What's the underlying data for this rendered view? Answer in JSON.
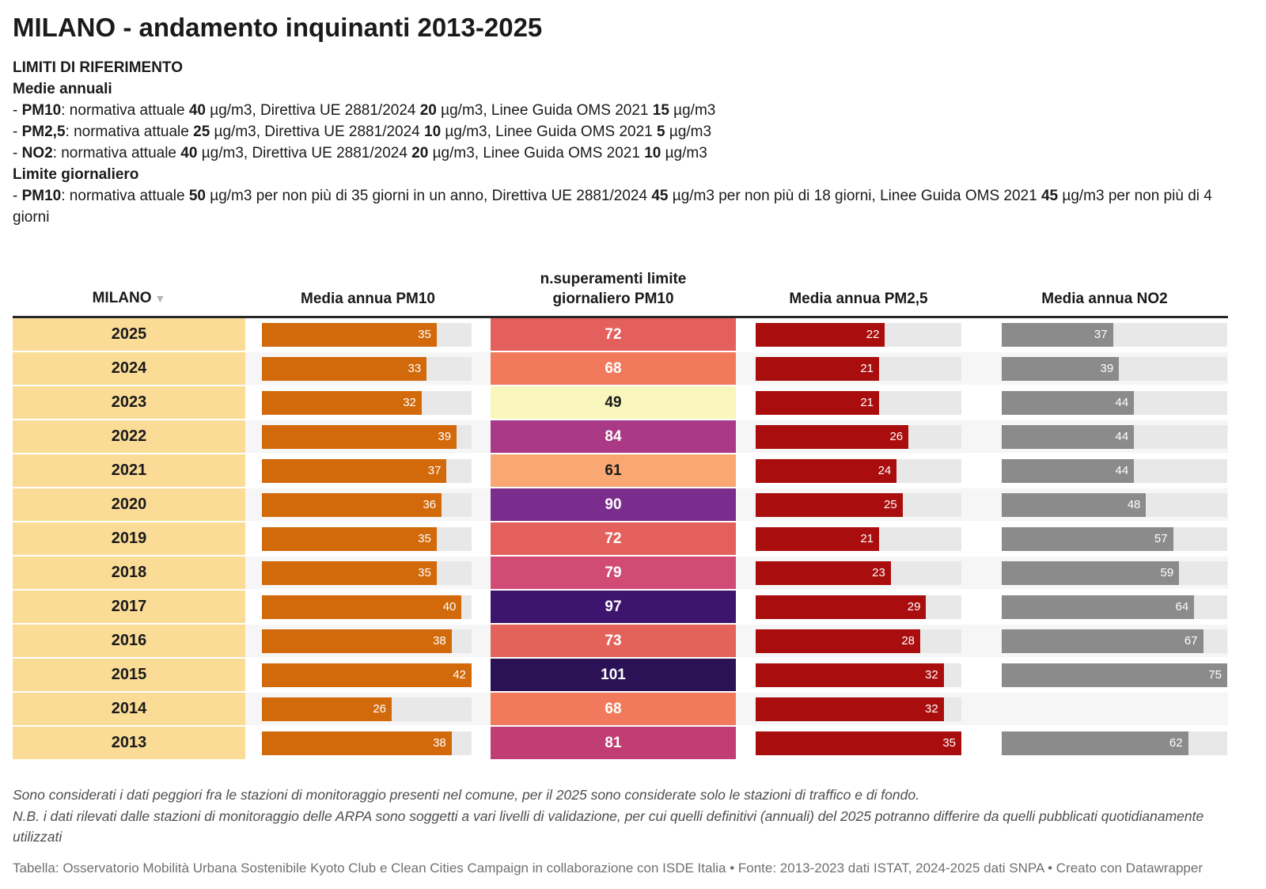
{
  "title": "MILANO - andamento inquinanti 2013-2025",
  "limits": {
    "heading": "LIMITI DI RIFERIMENTO",
    "annual_heading": "Medie annuali",
    "annual_lines": [
      [
        {
          "t": "- "
        },
        {
          "t": "PM10",
          "b": true
        },
        {
          "t": ": normativa attuale "
        },
        {
          "t": "40",
          "b": true
        },
        {
          "t": " µg/m3, Direttiva UE 2881/2024 "
        },
        {
          "t": "20",
          "b": true
        },
        {
          "t": " µg/m3, Linee Guida OMS 2021 "
        },
        {
          "t": "15",
          "b": true
        },
        {
          "t": " µg/m3"
        }
      ],
      [
        {
          "t": "- "
        },
        {
          "t": "PM2,5",
          "b": true
        },
        {
          "t": ": normativa attuale "
        },
        {
          "t": "25",
          "b": true
        },
        {
          "t": " µg/m3, Direttiva UE 2881/2024 "
        },
        {
          "t": "10",
          "b": true
        },
        {
          "t": " µg/m3, Linee Guida OMS 2021 "
        },
        {
          "t": "5",
          "b": true
        },
        {
          "t": " µg/m3"
        }
      ],
      [
        {
          "t": "- "
        },
        {
          "t": "NO2",
          "b": true
        },
        {
          "t": ": normativa attuale "
        },
        {
          "t": "40",
          "b": true
        },
        {
          "t": " µg/m3, Direttiva UE 2881/2024 "
        },
        {
          "t": "20",
          "b": true
        },
        {
          "t": " µg/m3, Linee Guida OMS 2021 "
        },
        {
          "t": "10",
          "b": true
        },
        {
          "t": " µg/m3"
        }
      ]
    ],
    "daily_heading": "Limite giornaliero",
    "daily_lines": [
      [
        {
          "t": "- "
        },
        {
          "t": "PM10",
          "b": true
        },
        {
          "t": ": normativa attuale "
        },
        {
          "t": "50",
          "b": true
        },
        {
          "t": " µg/m3 per non più di 35 giorni in un anno, Direttiva UE 2881/2024 "
        },
        {
          "t": "45",
          "b": true
        },
        {
          "t": " µg/m3 per non più di 18 giorni, Linee Guida OMS 2021 "
        },
        {
          "t": "45",
          "b": true
        },
        {
          "t": " µg/m3 per non più di 4 giorni"
        }
      ]
    ]
  },
  "table": {
    "columns": {
      "year": "MILANO",
      "sort_icon": "▼",
      "pm10": "Media annua PM10",
      "exceed": "n.superamenti limite giornaliero PM10",
      "pm25": "Media annua PM2,5",
      "no2": "Media annua NO2"
    },
    "bar_max": {
      "pm10": 42,
      "pm25": 35,
      "no2": 75
    },
    "colors": {
      "year_bg": "#FBDC97",
      "row_alt": "#F6F6F6",
      "track": "#E8E8E8",
      "pm10_bar": "#D2690B",
      "pm25_bar": "#A90D0D",
      "no2_bar": "#8B8B8B",
      "light_text": "#FFFFFF",
      "dark_text": "#1A1A1A"
    },
    "rows": [
      {
        "year": "2025",
        "pm10": 35,
        "exceed": 72,
        "exceed_bg": "#E4605C",
        "exceed_dark": false,
        "pm25": 22,
        "no2": 37
      },
      {
        "year": "2024",
        "pm10": 33,
        "exceed": 68,
        "exceed_bg": "#F07A5B",
        "exceed_dark": false,
        "pm25": 21,
        "no2": 39
      },
      {
        "year": "2023",
        "pm10": 32,
        "exceed": 49,
        "exceed_bg": "#FAF7BC",
        "exceed_dark": true,
        "pm25": 21,
        "no2": 44
      },
      {
        "year": "2022",
        "pm10": 39,
        "exceed": 84,
        "exceed_bg": "#AA3A86",
        "exceed_dark": false,
        "pm25": 26,
        "no2": 44
      },
      {
        "year": "2021",
        "pm10": 37,
        "exceed": 61,
        "exceed_bg": "#F9A873",
        "exceed_dark": true,
        "pm25": 24,
        "no2": 44
      },
      {
        "year": "2020",
        "pm10": 36,
        "exceed": 90,
        "exceed_bg": "#7A2D8D",
        "exceed_dark": false,
        "pm25": 25,
        "no2": 48
      },
      {
        "year": "2019",
        "pm10": 35,
        "exceed": 72,
        "exceed_bg": "#E4605C",
        "exceed_dark": false,
        "pm25": 21,
        "no2": 57
      },
      {
        "year": "2018",
        "pm10": 35,
        "exceed": 79,
        "exceed_bg": "#D24B77",
        "exceed_dark": false,
        "pm25": 23,
        "no2": 59
      },
      {
        "year": "2017",
        "pm10": 40,
        "exceed": 97,
        "exceed_bg": "#3D156F",
        "exceed_dark": false,
        "pm25": 29,
        "no2": 64
      },
      {
        "year": "2016",
        "pm10": 38,
        "exceed": 73,
        "exceed_bg": "#E3635B",
        "exceed_dark": false,
        "pm25": 28,
        "no2": 67
      },
      {
        "year": "2015",
        "pm10": 42,
        "exceed": 101,
        "exceed_bg": "#2B1257",
        "exceed_dark": false,
        "pm25": 32,
        "no2": 75
      },
      {
        "year": "2014",
        "pm10": 26,
        "exceed": 68,
        "exceed_bg": "#F07A5B",
        "exceed_dark": false,
        "pm25": 32,
        "no2": null
      },
      {
        "year": "2013",
        "pm10": 38,
        "exceed": 81,
        "exceed_bg": "#C03E73",
        "exceed_dark": false,
        "pm25": 35,
        "no2": 62
      }
    ]
  },
  "footer": {
    "note1": "Sono considerati i dati peggiori fra le stazioni di monitoraggio presenti nel comune, per il 2025 sono considerate solo le stazioni di traffico e di fondo.",
    "note2": "N.B. i dati rilevati dalle stazioni di monitoraggio delle ARPA sono soggetti a vari livelli di validazione, per cui quelli definitivi (annuali) del 2025 potranno differire da quelli pubblicati quotidianamente utilizzati",
    "credit": "Tabella: Osservatorio Mobilità Urbana Sostenibile Kyoto Club e Clean Cities Campaign in collaborazione con ISDE Italia • Fonte: 2013-2023 dati ISTAT, 2024-2025 dati SNPA • Creato con Datawrapper"
  },
  "chart_data": {
    "type": "table",
    "title": "MILANO - andamento inquinanti 2013-2025",
    "categories": [
      "2025",
      "2024",
      "2023",
      "2022",
      "2021",
      "2020",
      "2019",
      "2018",
      "2017",
      "2016",
      "2015",
      "2014",
      "2013"
    ],
    "series": [
      {
        "name": "Media annua PM10",
        "values": [
          35,
          33,
          32,
          39,
          37,
          36,
          35,
          35,
          40,
          38,
          42,
          26,
          38
        ]
      },
      {
        "name": "n.superamenti limite giornaliero PM10",
        "values": [
          72,
          68,
          49,
          84,
          61,
          90,
          72,
          79,
          97,
          73,
          101,
          68,
          81
        ]
      },
      {
        "name": "Media annua PM2,5",
        "values": [
          22,
          21,
          21,
          26,
          24,
          25,
          21,
          23,
          29,
          28,
          32,
          32,
          35
        ]
      },
      {
        "name": "Media annua NO2",
        "values": [
          37,
          39,
          44,
          44,
          44,
          48,
          57,
          59,
          64,
          67,
          75,
          null,
          62
        ]
      }
    ],
    "layout": {
      "bar_axis_max": {
        "Media annua PM10": 42,
        "Media annua PM2,5": 35,
        "Media annua NO2": 75
      },
      "heatmap_column": "n.superamenti limite giornaliero PM10"
    }
  }
}
